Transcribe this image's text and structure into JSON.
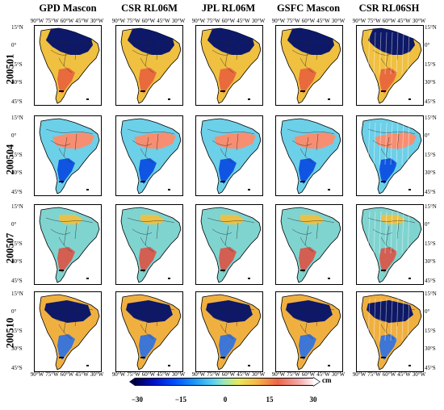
{
  "columns": [
    "GPD Mascon",
    "CSR RL06M",
    "JPL RL06M",
    "GSFC Mascon",
    "CSR RL06SH"
  ],
  "rows": [
    "200501",
    "200504",
    "200507",
    "200510"
  ],
  "lat_ticks": [
    "15°N",
    "0°",
    "15°S",
    "30°S",
    "45°S"
  ],
  "lon_ticks": [
    "90°W",
    "75°W",
    "60°W",
    "45°W",
    "30°W"
  ],
  "colorbar": {
    "unit": "cm",
    "ticks": [
      "−30",
      "−15",
      "0",
      "15",
      "30"
    ],
    "range": [
      -30,
      30
    ],
    "colors": [
      "#00004a",
      "#0050ff",
      "#5fd2f0",
      "#e8e85a",
      "#ee6448",
      "#fff2f2"
    ]
  },
  "map_fills": [
    {
      "base": "#f0c040",
      "anomaly": "#00106a",
      "anomaly_region": "north-amazon",
      "secondary": "#e85a3c"
    },
    {
      "base": "#6cd0e8",
      "anomaly": "#ff8a6a",
      "anomaly_region": "central-brazil",
      "secondary": "#0040e0"
    },
    {
      "base": "#7fd4d0",
      "anomaly": "#f0c040",
      "anomaly_region": "mixed",
      "secondary": "#e04a3c"
    },
    {
      "base": "#f0b040",
      "anomaly": "#00106a",
      "anomaly_region": "amazon-basin",
      "secondary": "#1e6cf0"
    }
  ]
}
